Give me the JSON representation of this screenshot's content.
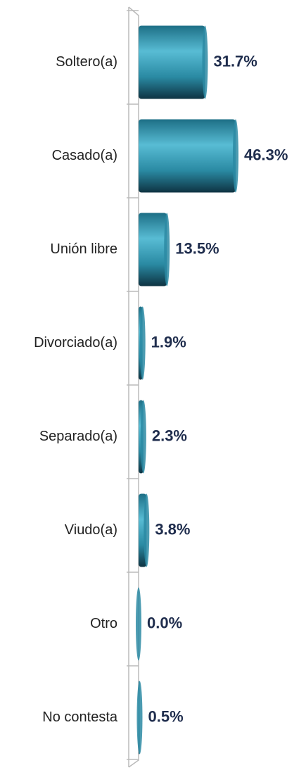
{
  "chart_data": {
    "type": "bar",
    "orientation": "horizontal",
    "categories": [
      "Soltero(a)",
      "Casado(a)",
      "Unión libre",
      "Divorciado(a)",
      "Separado(a)",
      "Viudo(a)",
      "Otro",
      "No contesta"
    ],
    "values": [
      31.7,
      46.3,
      13.5,
      1.9,
      2.3,
      3.8,
      0.0,
      0.5
    ],
    "value_labels": [
      "31.7%",
      "46.3%",
      "13.5%",
      "1.9%",
      "2.3%",
      "3.8%",
      "0.0%",
      "0.5%"
    ],
    "color": "#2b8aa3"
  }
}
